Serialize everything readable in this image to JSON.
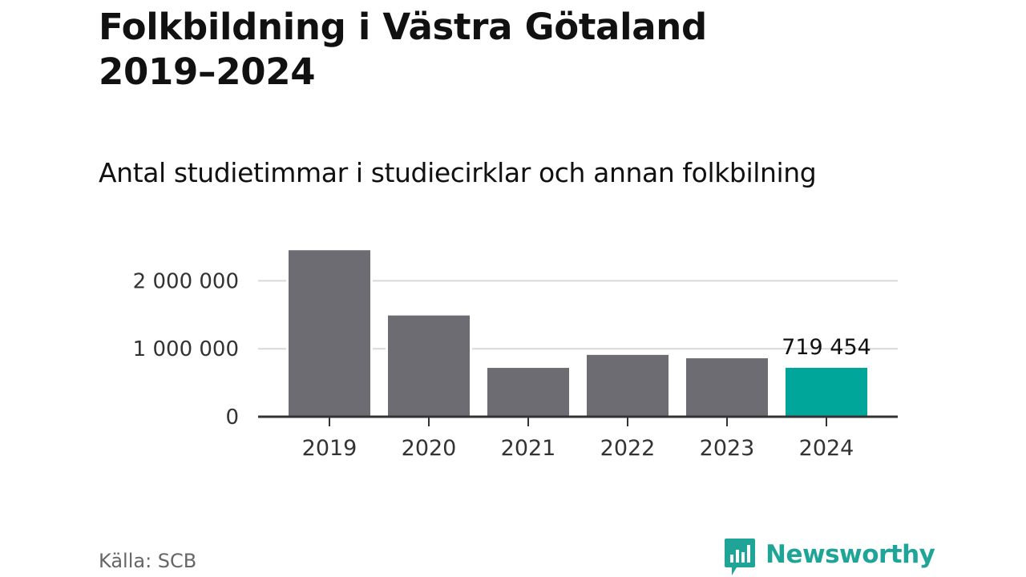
{
  "title_line1": "Folkbildning i Västra Götaland",
  "title_line2": "2019–2024",
  "subtitle": "Antal studietimmar i studiecirklar och annan folkbilning",
  "source": "Källa: SCB",
  "logo": {
    "text": "Newsworthy",
    "icon": "newsworthy-logo-icon"
  },
  "colors": {
    "default_bar": "#6d6c72",
    "highlight_bar": "#00a69a",
    "grid": "#d9d9d9",
    "axis": "#333333",
    "brand": "#1fa598"
  },
  "chart_data": {
    "type": "bar",
    "categories": [
      "2019",
      "2020",
      "2021",
      "2022",
      "2023",
      "2024"
    ],
    "values": [
      2450000,
      1490000,
      719000,
      910000,
      860000,
      719454
    ],
    "highlight_index": 5,
    "highlight_label": "719 454",
    "ylim": [
      0,
      2500000
    ],
    "yticks": [
      0,
      1000000,
      2000000
    ],
    "ytick_labels": [
      "0",
      "1 000 000",
      "2 000 000"
    ],
    "grid": true,
    "xlabel": "",
    "ylabel": ""
  }
}
